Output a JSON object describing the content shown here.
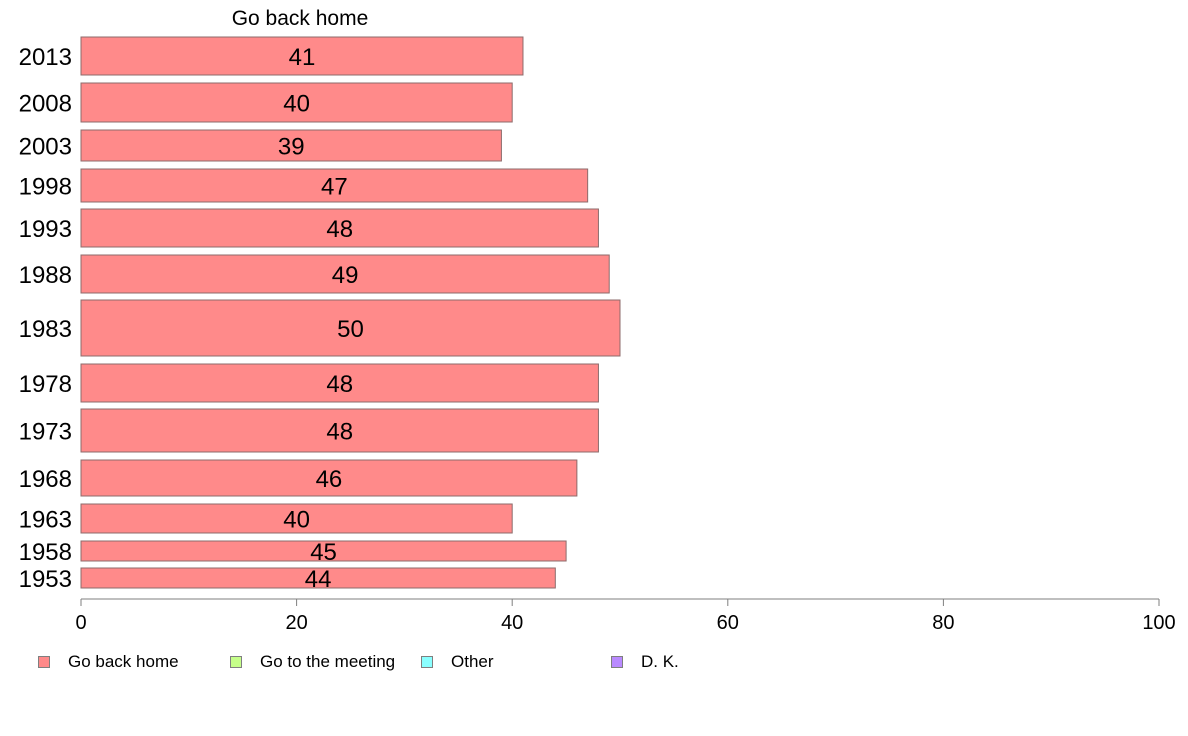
{
  "chart_data": {
    "type": "bar",
    "orientation": "horizontal",
    "title": "Go back home",
    "categories": [
      "2013",
      "2008",
      "2003",
      "1998",
      "1993",
      "1988",
      "1983",
      "1978",
      "1973",
      "1968",
      "1963",
      "1958",
      "1953"
    ],
    "series": [
      {
        "name": "Go back home",
        "color": "#ff8a8a",
        "values": [
          41,
          40,
          39,
          47,
          48,
          49,
          50,
          48,
          48,
          46,
          40,
          45,
          44
        ],
        "labels": [
          "41",
          "40",
          "39",
          "47",
          "48",
          "49",
          "50",
          "48",
          "48",
          "46",
          "40",
          "45",
          "44"
        ]
      }
    ],
    "xlim": [
      0,
      100
    ],
    "xticks": [
      "0",
      "20",
      "40",
      "60",
      "80",
      "100"
    ],
    "grid": false,
    "legend_position": "bottom",
    "legend": [
      {
        "label": "Go back home",
        "color": "#ff8a8a"
      },
      {
        "label": "Go to the meeting",
        "color": "#c6ff8a"
      },
      {
        "label": "Other",
        "color": "#8affff"
      },
      {
        "label": "D. K.",
        "color": "#b98aff"
      }
    ]
  }
}
